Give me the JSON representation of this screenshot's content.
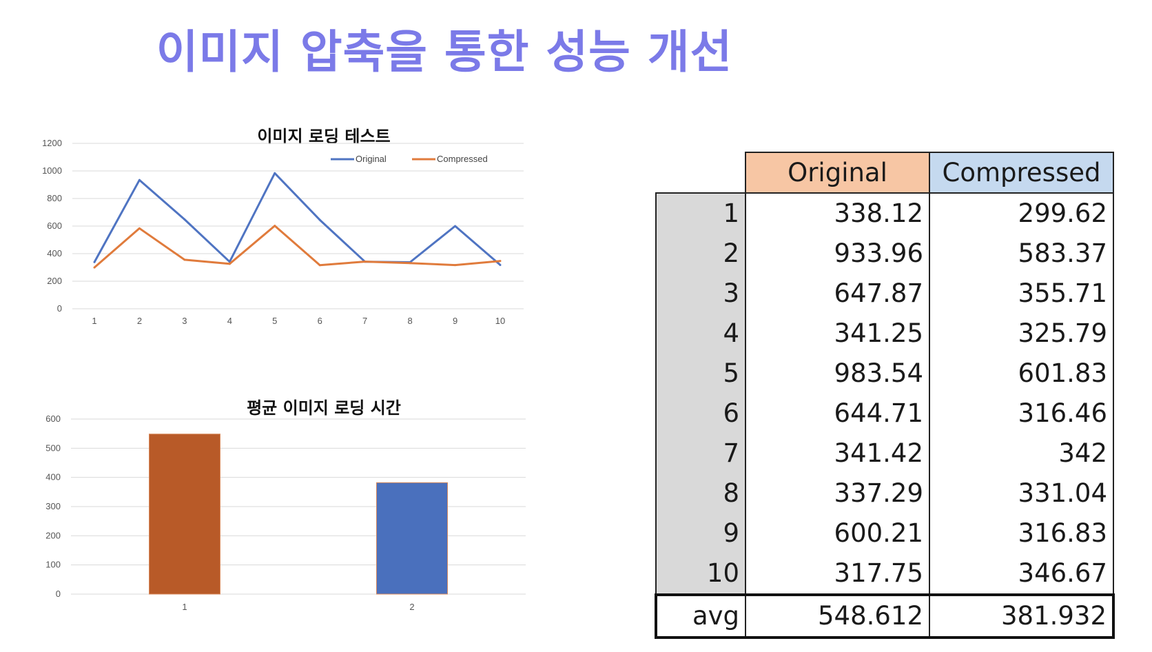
{
  "page": {
    "title": "이미지 압축을 통한 성능 개선"
  },
  "chart_data": [
    {
      "type": "line",
      "title": "이미지 로딩 테스트",
      "x": [
        1,
        2,
        3,
        4,
        5,
        6,
        7,
        8,
        9,
        10
      ],
      "series": [
        {
          "name": "Original",
          "color": "#4f74c2",
          "values": [
            338.12,
            933.96,
            647.87,
            341.25,
            983.54,
            644.71,
            341.42,
            337.29,
            600.21,
            317.75
          ]
        },
        {
          "name": "Compressed",
          "color": "#e07b3c",
          "values": [
            299.62,
            583.37,
            355.71,
            325.79,
            601.83,
            316.46,
            342,
            331.04,
            316.83,
            346.67
          ]
        }
      ],
      "ylim": [
        0,
        1200
      ],
      "yticks": [
        0,
        200,
        400,
        600,
        800,
        1000,
        1200
      ],
      "grid": true,
      "legend": "top-right"
    },
    {
      "type": "bar",
      "title": "평균 이미지 로딩 시간",
      "categories": [
        "1",
        "2"
      ],
      "values": [
        548.612,
        381.932
      ],
      "colors": [
        "#b85a28",
        "#4a70bd"
      ],
      "ylim": [
        0,
        600
      ],
      "yticks": [
        0,
        100,
        200,
        300,
        400,
        500,
        600
      ],
      "grid": true
    }
  ],
  "table": {
    "headers": [
      "Original",
      "Compressed"
    ],
    "rows": [
      {
        "index": "1",
        "original": "338.12",
        "compressed": "299.62"
      },
      {
        "index": "2",
        "original": "933.96",
        "compressed": "583.37"
      },
      {
        "index": "3",
        "original": "647.87",
        "compressed": "355.71"
      },
      {
        "index": "4",
        "original": "341.25",
        "compressed": "325.79"
      },
      {
        "index": "5",
        "original": "983.54",
        "compressed": "601.83"
      },
      {
        "index": "6",
        "original": "644.71",
        "compressed": "316.46"
      },
      {
        "index": "7",
        "original": "341.42",
        "compressed": "342"
      },
      {
        "index": "8",
        "original": "337.29",
        "compressed": "331.04"
      },
      {
        "index": "9",
        "original": "600.21",
        "compressed": "316.83"
      },
      {
        "index": "10",
        "original": "317.75",
        "compressed": "346.67"
      }
    ],
    "avg": {
      "label": "avg",
      "original": "548.612",
      "compressed": "381.932"
    }
  }
}
